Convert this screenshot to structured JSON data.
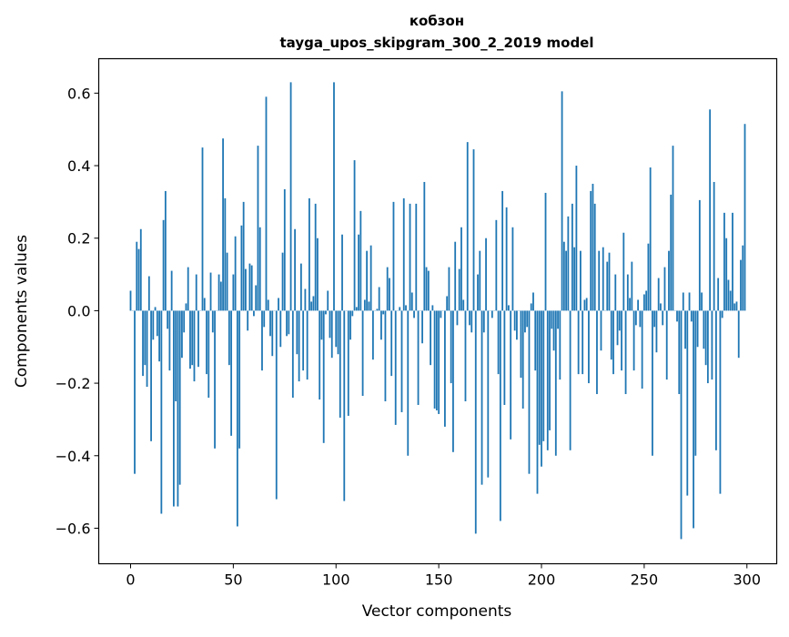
{
  "chart_data": {
    "type": "bar",
    "title": [
      "кобзон",
      "tayga_upos_skipgram_300_2_2019 model"
    ],
    "xlabel": "Vector components",
    "ylabel": "Components values",
    "xlim": [
      -15.5,
      314.5
    ],
    "ylim": [
      -0.698,
      0.695
    ],
    "xticks": [
      0,
      50,
      100,
      150,
      200,
      250,
      300
    ],
    "xtick_labels": [
      "0",
      "50",
      "100",
      "150",
      "200",
      "250",
      "300"
    ],
    "yticks": [
      -0.6,
      -0.4,
      -0.2,
      0.0,
      0.2,
      0.4,
      0.6
    ],
    "ytick_labels": [
      "−0.6",
      "−0.4",
      "−0.2",
      "0.0",
      "0.2",
      "0.4",
      "0.6"
    ],
    "grid": false,
    "bar_color": "#1f77b4",
    "values": [
      0.055,
      0,
      -0.45,
      0.19,
      0.17,
      0.225,
      -0.18,
      -0.15,
      -0.21,
      0.095,
      -0.36,
      -0.08,
      0.01,
      -0.07,
      -0.14,
      -0.56,
      0.25,
      0.33,
      -0.05,
      -0.165,
      0.11,
      -0.54,
      -0.25,
      -0.54,
      -0.48,
      -0.13,
      -0.06,
      0.02,
      0.12,
      -0.16,
      -0.15,
      -0.195,
      0.1,
      -0.155,
      0,
      0.45,
      0.035,
      -0.175,
      -0.24,
      0.105,
      -0.06,
      -0.38,
      0,
      0.1,
      0.08,
      0.475,
      0.31,
      0.16,
      -0.15,
      -0.345,
      0.1,
      0.205,
      -0.595,
      -0.38,
      0.235,
      0.3,
      0.115,
      -0.055,
      0.13,
      0.125,
      -0.015,
      0.07,
      0.455,
      0.23,
      -0.165,
      -0.045,
      0.59,
      0.03,
      -0.07,
      -0.125,
      0,
      -0.52,
      0.035,
      -0.1,
      0.16,
      0.335,
      -0.07,
      -0.065,
      0.63,
      -0.24,
      0.225,
      -0.12,
      -0.195,
      0.13,
      -0.165,
      0.06,
      -0.19,
      0.31,
      0.025,
      0.04,
      0.295,
      0.2,
      -0.245,
      -0.08,
      -0.365,
      -0.01,
      0.055,
      -0.075,
      -0.13,
      0.63,
      -0.1,
      -0.12,
      -0.295,
      0.21,
      -0.525,
      0,
      -0.29,
      -0.08,
      -0.015,
      0.415,
      0.01,
      0.21,
      0.275,
      -0.235,
      0.03,
      0.165,
      0.025,
      0.18,
      -0.135,
      0,
      0.005,
      0.065,
      -0.08,
      -0.01,
      -0.25,
      0.12,
      0.09,
      -0.18,
      0.3,
      -0.315,
      0,
      0.01,
      -0.28,
      0.31,
      0.015,
      -0.4,
      0.295,
      0.05,
      -0.02,
      0.295,
      -0.26,
      0,
      -0.09,
      0.355,
      0.12,
      0.11,
      -0.15,
      0.015,
      -0.27,
      -0.275,
      -0.285,
      -0.02,
      0,
      -0.32,
      0.04,
      0.12,
      -0.2,
      -0.39,
      0.19,
      -0.04,
      0.115,
      0.23,
      0.03,
      -0.25,
      0.465,
      -0.04,
      -0.06,
      0.445,
      -0.615,
      0.1,
      0.165,
      -0.48,
      -0.06,
      0.2,
      -0.46,
      0,
      -0.02,
      0,
      0.25,
      -0.175,
      -0.58,
      0.33,
      -0.26,
      0.285,
      0.015,
      -0.355,
      0.23,
      -0.055,
      -0.08,
      0,
      -0.185,
      -0.27,
      -0.06,
      -0.045,
      -0.45,
      0.02,
      0.05,
      -0.165,
      -0.505,
      -0.37,
      -0.43,
      -0.36,
      0.325,
      -0.385,
      -0.33,
      -0.05,
      -0.11,
      -0.4,
      -0.05,
      -0.19,
      0.605,
      0.19,
      0.165,
      0.26,
      -0.385,
      0.295,
      0.175,
      0.4,
      -0.175,
      0.165,
      -0.175,
      0.03,
      0.035,
      -0.2,
      0.33,
      0.35,
      0.295,
      -0.23,
      0.165,
      -0.11,
      0.175,
      0,
      0.135,
      0.16,
      -0.135,
      -0.175,
      0.1,
      -0.095,
      -0.055,
      -0.165,
      0.215,
      -0.23,
      0.1,
      0.035,
      0.135,
      -0.165,
      -0.04,
      0.03,
      -0.045,
      -0.215,
      0.045,
      0.055,
      0.185,
      0.395,
      -0.4,
      -0.045,
      -0.115,
      0.09,
      0.02,
      -0.04,
      0.12,
      -0.19,
      0.165,
      0.32,
      0.455,
      0,
      -0.03,
      -0.23,
      -0.63,
      0.05,
      -0.105,
      -0.51,
      0.05,
      -0.03,
      -0.6,
      -0.4,
      -0.1,
      0.305,
      0.05,
      -0.105,
      -0.15,
      -0.2,
      0.555,
      -0.19,
      0.355,
      -0.385,
      0.09,
      -0.505,
      -0.02,
      0.27,
      0.2,
      0.085,
      0.055,
      0.27,
      0.02,
      0.025,
      -0.13,
      0.14,
      0.18,
      0.515
    ]
  }
}
